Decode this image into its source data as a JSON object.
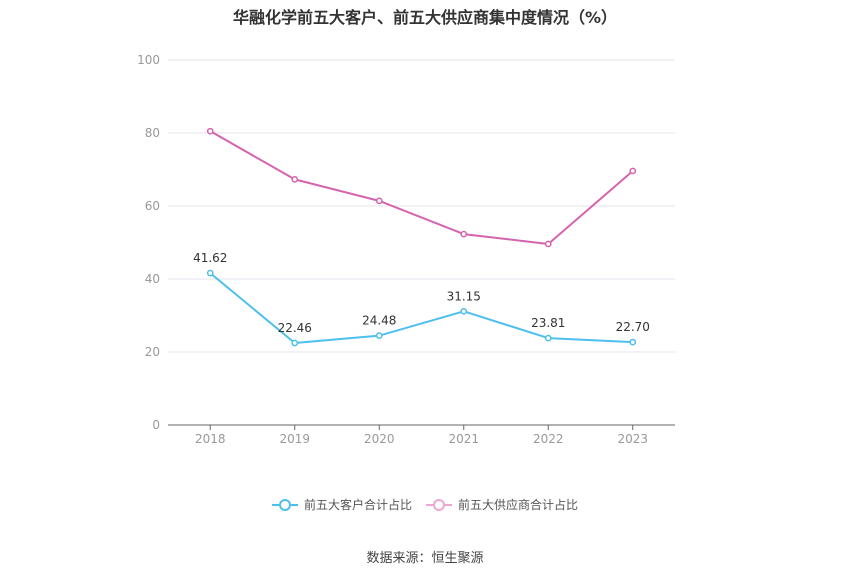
{
  "chart_data": {
    "type": "line",
    "title": "华融化学前五大客户、前五大供应商集中度情况（%）",
    "categories": [
      "2018",
      "2019",
      "2020",
      "2021",
      "2022",
      "2023"
    ],
    "ylim": [
      0,
      100
    ],
    "yticks": [
      "0",
      "20",
      "40",
      "60",
      "80",
      "100"
    ],
    "grid": true,
    "legend_position": "bottom",
    "series": [
      {
        "name": "前五大客户合计占比",
        "color": "#4dbfef",
        "values": [
          41.62,
          22.46,
          24.48,
          31.15,
          23.81,
          22.7
        ],
        "labels": [
          "41.62",
          "22.46",
          "24.48",
          "31.15",
          "23.81",
          "22.70"
        ]
      },
      {
        "name": "前五大供应商合计占比",
        "color": "#d563ad",
        "values": [
          80.5,
          67.3,
          61.4,
          52.3,
          49.6,
          69.6
        ]
      }
    ]
  },
  "footer": {
    "source": "数据来源：恒生聚源"
  }
}
